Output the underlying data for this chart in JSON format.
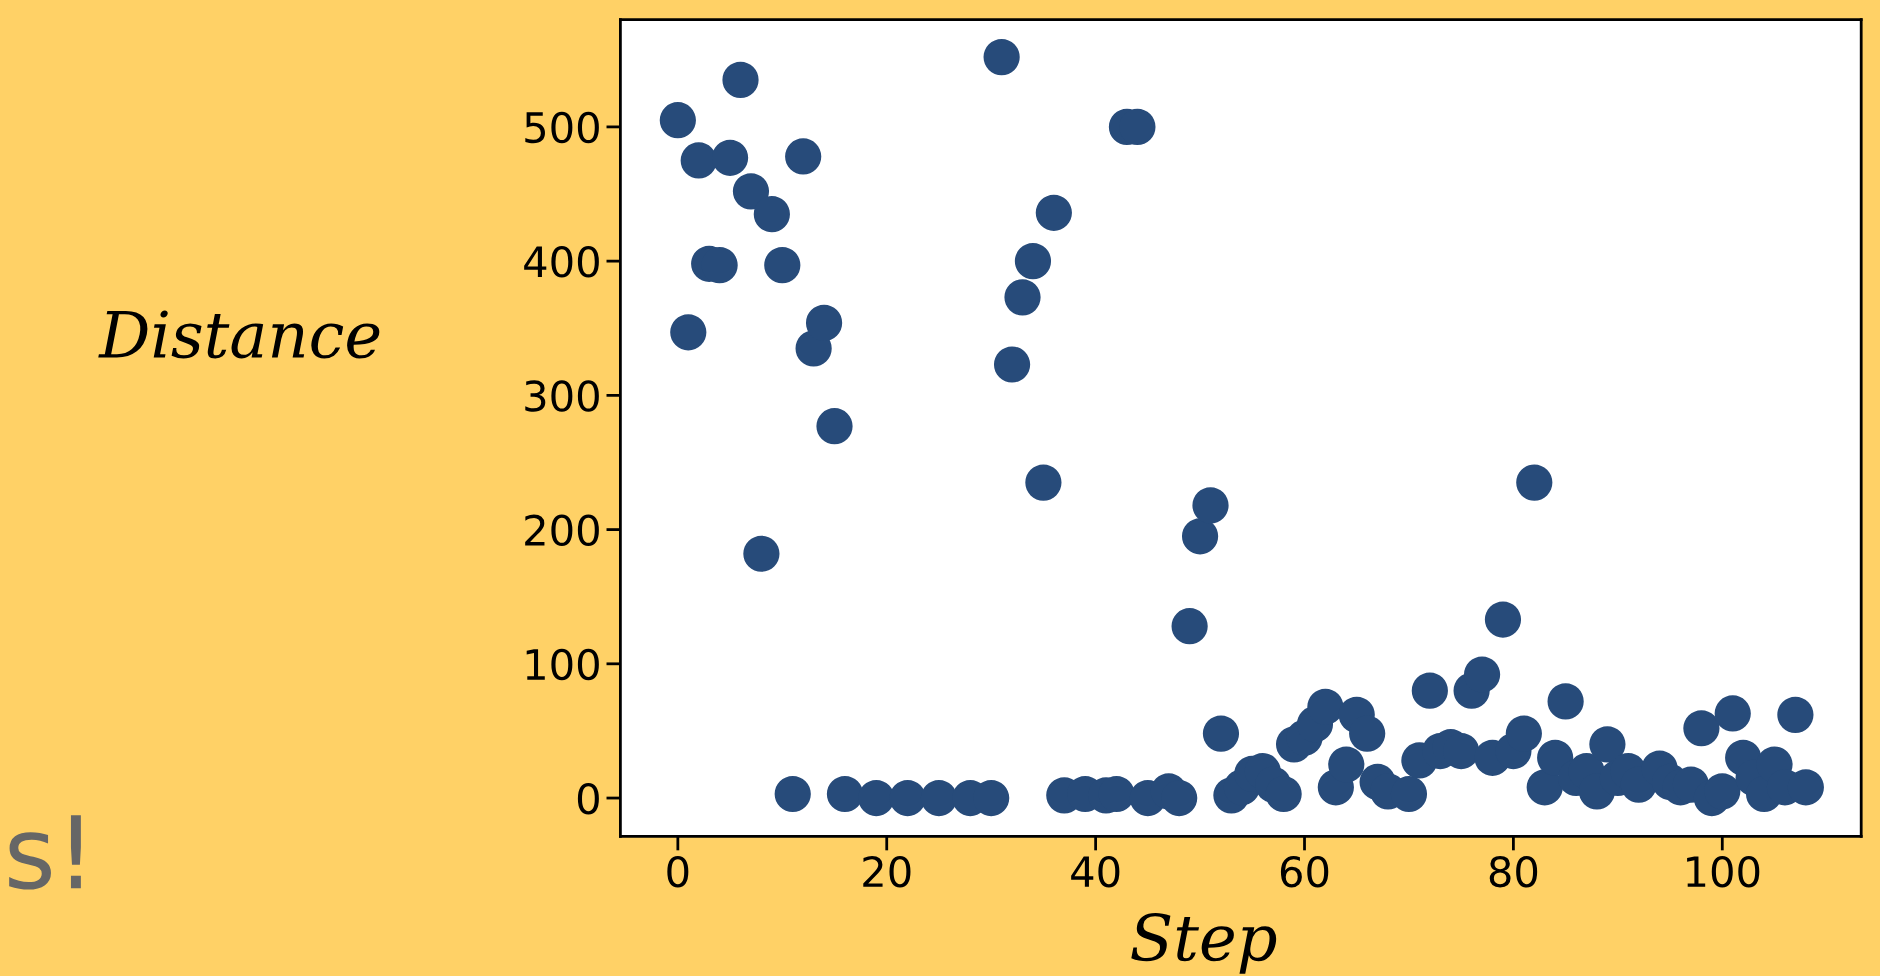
{
  "chart_data": {
    "type": "scatter",
    "xlabel": "Step",
    "ylabel": "Distance",
    "annotations": [
      "s!"
    ],
    "color": "#274b7a",
    "marker": "circle",
    "grid": false,
    "x": [
      0,
      1,
      2,
      3,
      4,
      5,
      6,
      7,
      8,
      9,
      10,
      11,
      12,
      13,
      14,
      15,
      16,
      17,
      18,
      19,
      20,
      21,
      22,
      23,
      24,
      25,
      26,
      27,
      28,
      29,
      30,
      31,
      32,
      33,
      34,
      35,
      36,
      37,
      38,
      39,
      40,
      41,
      42,
      43,
      44,
      45,
      46,
      47,
      48,
      49,
      50,
      51,
      52,
      53,
      54,
      55,
      56,
      57,
      58,
      59,
      60,
      61,
      62,
      63,
      64,
      65,
      66,
      67,
      68,
      69,
      70,
      71,
      72,
      73,
      74,
      75,
      76,
      77,
      78,
      79,
      80,
      81,
      82,
      83,
      84,
      85,
      86,
      87,
      88,
      89,
      90,
      91,
      92,
      93,
      94,
      95,
      96,
      97,
      98,
      99,
      100,
      101,
      102,
      103,
      104,
      105,
      106,
      107,
      108
    ],
    "values": [
      505,
      347,
      475,
      398,
      397,
      477,
      535,
      452,
      182,
      435,
      397,
      3,
      478,
      335,
      354,
      277,
      3,
      null,
      null,
      0,
      null,
      null,
      0,
      null,
      null,
      0,
      null,
      null,
      0,
      null,
      0,
      552,
      323,
      373,
      400,
      235,
      436,
      2,
      null,
      3,
      null,
      2,
      3,
      500,
      500,
      0,
      null,
      5,
      0,
      128,
      195,
      218,
      48,
      2,
      8,
      18,
      20,
      10,
      3,
      40,
      45,
      55,
      68,
      8,
      25,
      62,
      48,
      12,
      5,
      null,
      3,
      28,
      80,
      35,
      38,
      35,
      80,
      92,
      30,
      133,
      35,
      48,
      235,
      8,
      30,
      72,
      15,
      20,
      5,
      40,
      15,
      20,
      10,
      null,
      22,
      12,
      8,
      10,
      52,
      0,
      5,
      63,
      30,
      15,
      3,
      25,
      8,
      62,
      8
    ],
    "xlim": [
      -5.5,
      113.3
    ],
    "ylim": [
      -28.6,
      580
    ],
    "xticks": [
      0,
      20,
      40,
      60,
      80,
      100
    ],
    "yticks": [
      0,
      100,
      200,
      300,
      400,
      500
    ]
  }
}
